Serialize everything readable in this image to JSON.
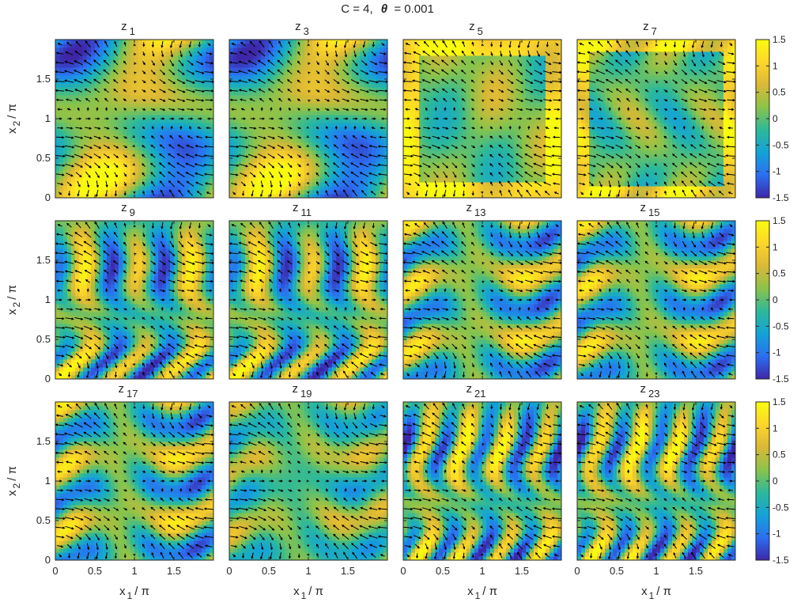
{
  "figure": {
    "title_prefix": "C = 4,",
    "title_symbol": "θ",
    "title_suffix": "= 0.001"
  },
  "chart_data": {
    "type": "heatmap",
    "description_overlay": "quiver",
    "x_axis": {
      "label_main": "x",
      "label_sub": "1",
      "label_tail": "/ π",
      "range": [
        0,
        2
      ],
      "ticks": [
        0,
        0.5,
        1,
        1.5
      ],
      "tick_labels": [
        "0",
        "0.5",
        "1",
        "1.5"
      ]
    },
    "y_axis": {
      "label_main": "x",
      "label_sub": "2",
      "label_tail": "/ π",
      "range": [
        0,
        2
      ],
      "ticks": [
        0,
        0.5,
        1,
        1.5
      ],
      "tick_labels": [
        "0",
        "0.5",
        "1",
        "1.5"
      ]
    },
    "colorbar": {
      "range": [
        -1.5,
        1.5
      ],
      "ticks": [
        1.5,
        1,
        0.5,
        0,
        -0.5,
        -1,
        -1.5
      ],
      "tick_labels": [
        "1.5",
        "1",
        "0.5",
        "0",
        "-0.5",
        "-1",
        "-1.5"
      ],
      "colormap": "parula",
      "stops": [
        "#3e26a8",
        "#2b6ff2",
        "#13a3d7",
        "#2cb99a",
        "#8bc34a",
        "#dbb835",
        "#fdd629",
        "#f9fb0e"
      ]
    },
    "panels": [
      {
        "name": "z",
        "sub": "1",
        "pattern": "s-vortex-strong"
      },
      {
        "name": "z",
        "sub": "3",
        "pattern": "s-vortex-strong"
      },
      {
        "name": "z",
        "sub": "5",
        "pattern": "frame-edges"
      },
      {
        "name": "z",
        "sub": "7",
        "pattern": "frame-swirl"
      },
      {
        "name": "z",
        "sub": "9",
        "pattern": "filament-swirl"
      },
      {
        "name": "z",
        "sub": "11",
        "pattern": "filament-swirl"
      },
      {
        "name": "z",
        "sub": "13",
        "pattern": "filament-band"
      },
      {
        "name": "z",
        "sub": "15",
        "pattern": "filament-band"
      },
      {
        "name": "z",
        "sub": "17",
        "pattern": "filament-band"
      },
      {
        "name": "z",
        "sub": "19",
        "pattern": "filament-weak"
      },
      {
        "name": "z",
        "sub": "21",
        "pattern": "filament-fine"
      },
      {
        "name": "z",
        "sub": "23",
        "pattern": "filament-fine"
      }
    ]
  }
}
